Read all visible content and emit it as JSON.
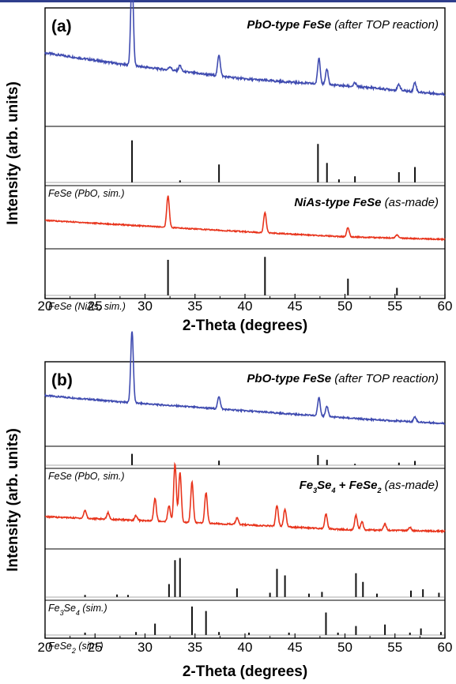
{
  "chart_data": [
    {
      "panel_label": "(a)",
      "type": "line",
      "title": "",
      "xlabel": "2-Theta (degrees)",
      "ylabel": "Intensity (arb. units)",
      "xlim": [
        20,
        60
      ],
      "x_ticks": [
        20,
        25,
        30,
        35,
        40,
        45,
        50,
        55,
        60
      ],
      "grid": false,
      "series": [
        {
          "kind": "experimental",
          "color": "#3f4bb0",
          "label_bold": "PbO-type FeSe",
          "label_italic": "(after TOP reaction)",
          "baseline": [
            [
              20,
              0.62
            ],
            [
              28,
              0.52
            ],
            [
              40,
              0.4
            ],
            [
              52,
              0.33
            ],
            [
              60,
              0.27
            ]
          ],
          "peaks": [
            [
              28.7,
              0.78
            ],
            [
              32.5,
              0.03
            ],
            [
              33.5,
              0.05
            ],
            [
              37.4,
              0.18
            ],
            [
              47.4,
              0.22
            ],
            [
              48.2,
              0.13
            ],
            [
              51.0,
              0.03
            ],
            [
              55.4,
              0.05
            ],
            [
              57.0,
              0.08
            ]
          ]
        },
        {
          "kind": "simulated",
          "color": "#111111",
          "label": "FeSe (PbO, sim.)",
          "sticks": [
            [
              28.7,
              0.82
            ],
            [
              33.5,
              0.04
            ],
            [
              37.4,
              0.35
            ],
            [
              47.3,
              0.75
            ],
            [
              48.2,
              0.38
            ],
            [
              49.4,
              0.06
            ],
            [
              51.0,
              0.12
            ],
            [
              55.4,
              0.2
            ],
            [
              57.0,
              0.3
            ]
          ]
        },
        {
          "kind": "experimental",
          "color": "#e8341c",
          "label_bold": "NiAs-type FeSe",
          "label_italic": "(as-made)",
          "baseline": [
            [
              20,
              0.45
            ],
            [
              30,
              0.36
            ],
            [
              40,
              0.27
            ],
            [
              50,
              0.19
            ],
            [
              60,
              0.15
            ]
          ],
          "peaks": [
            [
              32.3,
              0.5
            ],
            [
              42.0,
              0.32
            ],
            [
              50.3,
              0.15
            ],
            [
              55.2,
              0.05
            ]
          ]
        },
        {
          "kind": "simulated",
          "color": "#111111",
          "label": "FeSe (NiAs, sim.)",
          "sticks": [
            [
              32.3,
              0.85
            ],
            [
              42.0,
              0.92
            ],
            [
              50.3,
              0.4
            ],
            [
              55.2,
              0.18
            ]
          ]
        }
      ]
    },
    {
      "panel_label": "(b)",
      "type": "line",
      "title": "",
      "xlabel": "2-Theta (degrees)",
      "ylabel": "Intensity (arb. units)",
      "xlim": [
        20,
        60
      ],
      "x_ticks": [
        20,
        25,
        30,
        35,
        40,
        45,
        50,
        55,
        60
      ],
      "grid": false,
      "series": [
        {
          "kind": "experimental",
          "color": "#3f4bb0",
          "label_bold": "PbO-type FeSe",
          "label_italic": "(after TOP reaction)",
          "baseline": [
            [
              20,
              0.6
            ],
            [
              28,
              0.52
            ],
            [
              40,
              0.42
            ],
            [
              52,
              0.32
            ],
            [
              60,
              0.27
            ]
          ],
          "peaks": [
            [
              28.7,
              0.85
            ],
            [
              37.4,
              0.15
            ],
            [
              47.4,
              0.22
            ],
            [
              48.2,
              0.12
            ],
            [
              57.0,
              0.06
            ]
          ]
        },
        {
          "kind": "simulated",
          "color": "#111111",
          "label": "FeSe (PbO, sim.)",
          "sticks": [
            [
              28.7,
              0.8
            ],
            [
              37.4,
              0.32
            ],
            [
              47.3,
              0.72
            ],
            [
              48.2,
              0.38
            ],
            [
              51.0,
              0.1
            ],
            [
              55.4,
              0.18
            ],
            [
              57.0,
              0.3
            ]
          ]
        },
        {
          "kind": "experimental",
          "color": "#e8341c",
          "label_bold_parts": [
            "Fe",
            "3",
            "Se",
            "4",
            " + FeSe",
            "2"
          ],
          "label_italic": "(as-made)",
          "baseline": [
            [
              20,
              0.4
            ],
            [
              30,
              0.35
            ],
            [
              40,
              0.3
            ],
            [
              50,
              0.24
            ],
            [
              60,
              0.22
            ]
          ],
          "peaks": [
            [
              24.0,
              0.1
            ],
            [
              26.3,
              0.08
            ],
            [
              29.1,
              0.06
            ],
            [
              31.0,
              0.28
            ],
            [
              32.4,
              0.2
            ],
            [
              33.0,
              0.72
            ],
            [
              33.5,
              0.62
            ],
            [
              34.7,
              0.5
            ],
            [
              36.1,
              0.38
            ],
            [
              39.2,
              0.08
            ],
            [
              43.2,
              0.26
            ],
            [
              44.0,
              0.22
            ],
            [
              48.1,
              0.18
            ],
            [
              51.1,
              0.18
            ],
            [
              51.7,
              0.1
            ],
            [
              54.0,
              0.08
            ],
            [
              56.5,
              0.04
            ]
          ]
        },
        {
          "kind": "simulated",
          "color": "#111111",
          "label_parts": [
            "Fe",
            "3",
            "Se",
            "4",
            " (sim.)"
          ],
          "sticks": [
            [
              24.0,
              0.05
            ],
            [
              27.2,
              0.06
            ],
            [
              28.3,
              0.05
            ],
            [
              32.4,
              0.3
            ],
            [
              33.0,
              0.85
            ],
            [
              33.5,
              0.9
            ],
            [
              39.2,
              0.2
            ],
            [
              42.5,
              0.1
            ],
            [
              43.2,
              0.65
            ],
            [
              44.0,
              0.5
            ],
            [
              46.4,
              0.08
            ],
            [
              47.7,
              0.12
            ],
            [
              51.1,
              0.55
            ],
            [
              51.8,
              0.35
            ],
            [
              53.2,
              0.08
            ],
            [
              56.6,
              0.15
            ],
            [
              57.8,
              0.18
            ],
            [
              59.4,
              0.1
            ]
          ]
        },
        {
          "kind": "simulated",
          "color": "#111111",
          "label_parts": [
            "FeSe",
            "2",
            " (sim.)"
          ],
          "sticks": [
            [
              24.0,
              0.08
            ],
            [
              29.1,
              0.1
            ],
            [
              31.0,
              0.38
            ],
            [
              34.7,
              0.95
            ],
            [
              36.1,
              0.8
            ],
            [
              37.4,
              0.1
            ],
            [
              40.4,
              0.08
            ],
            [
              44.4,
              0.08
            ],
            [
              48.1,
              0.75
            ],
            [
              49.3,
              0.08
            ],
            [
              51.1,
              0.3
            ],
            [
              54.0,
              0.35
            ],
            [
              56.5,
              0.08
            ],
            [
              57.6,
              0.22
            ],
            [
              59.6,
              0.1
            ]
          ]
        }
      ]
    }
  ]
}
